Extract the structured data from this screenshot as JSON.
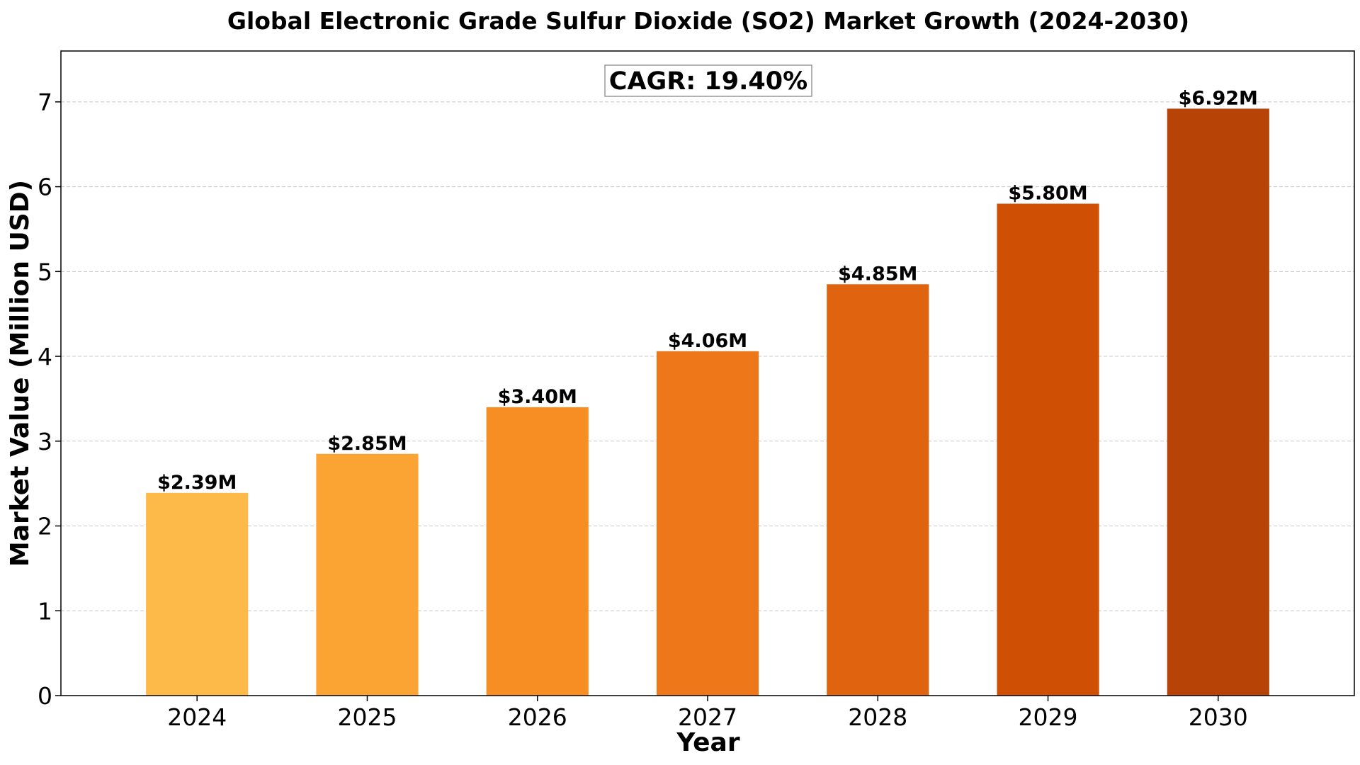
{
  "chart_data": {
    "type": "bar",
    "title": "Global Electronic Grade Sulfur Dioxide (SO2) Market Growth (2024-2030)",
    "xlabel": "Year",
    "ylabel": "Market Value (Million USD)",
    "categories": [
      "2024",
      "2025",
      "2026",
      "2027",
      "2028",
      "2029",
      "2030"
    ],
    "values": [
      2.39,
      2.85,
      3.4,
      4.06,
      4.85,
      5.8,
      6.92
    ],
    "value_labels": [
      "$2.39M",
      "$2.85M",
      "$3.40M",
      "$4.06M",
      "$4.85M",
      "$5.80M",
      "$6.92M"
    ],
    "bar_colors": [
      "#FDBA48",
      "#FCA433",
      "#F78E23",
      "#EE771A",
      "#E06410",
      "#CF5005",
      "#B84306"
    ],
    "ylim": [
      0,
      7.6
    ],
    "yticks": [
      0,
      1,
      2,
      3,
      4,
      5,
      6,
      7
    ],
    "grid": "y-dashed",
    "annotation": "CAGR: 19.40%",
    "annotation_placement": "top-center"
  }
}
